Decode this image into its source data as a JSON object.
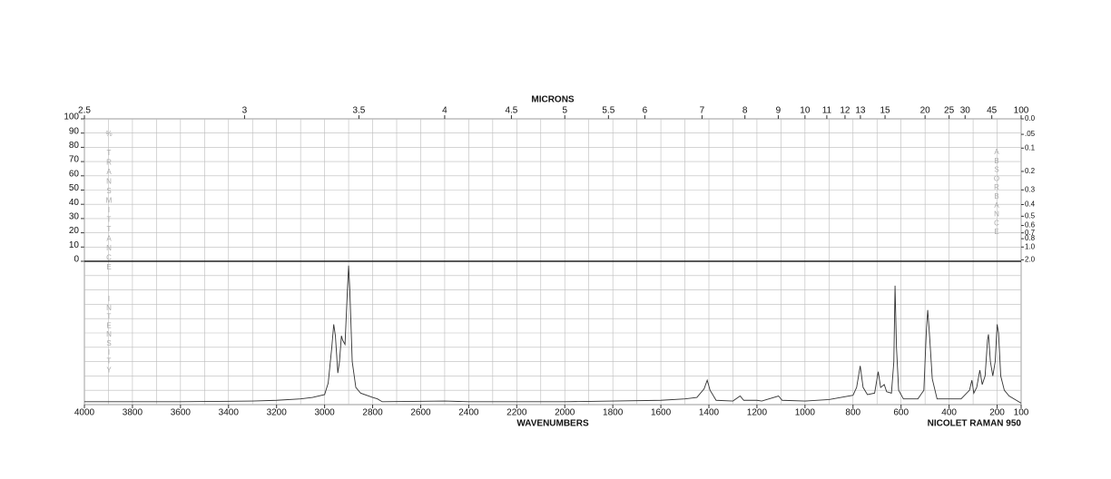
{
  "chart_data": {
    "type": "line",
    "x2_label": "MICRONS",
    "x_label": "WAVENUMBERS",
    "footer": "NICOLET RAMAN 950",
    "transmittance_label": "% TRANSMITTANCE",
    "intensity_label": "INTENSITY",
    "absorbance_label": "ABSORBANCE",
    "xlim": [
      4000,
      100
    ],
    "xticks": [
      4000,
      3800,
      3600,
      3400,
      3200,
      3000,
      2800,
      2600,
      2400,
      2200,
      2000,
      1800,
      1600,
      1400,
      1200,
      1000,
      800,
      600,
      400,
      200,
      100
    ],
    "xgrid": [
      3900,
      3700,
      3500,
      3300,
      3100,
      2900,
      2700,
      2500,
      2300,
      2100,
      1900,
      1700,
      1500,
      1300,
      1100,
      900,
      700,
      500,
      300
    ],
    "x2ticks": [
      2.5,
      3,
      3.5,
      4,
      4.5,
      5,
      5.5,
      6,
      7,
      8,
      9,
      10,
      11,
      12,
      13,
      15,
      20,
      25,
      30,
      45,
      100
    ],
    "transmittance_lim": [
      0,
      100
    ],
    "transmittance_ticks": [
      0,
      10,
      20,
      30,
      40,
      50,
      60,
      70,
      80,
      90,
      100
    ],
    "absorbance_ticks": [
      {
        "value": 0,
        "label": "0.0"
      },
      {
        "value": 0.05,
        "label": ".05"
      },
      0.1,
      0.2,
      0.3,
      0.4,
      0.5,
      0.6,
      0.7,
      0.8,
      {
        "value": 1,
        "label": "1.0"
      },
      {
        "value": 2,
        "label": "2.0"
      }
    ],
    "ylim": [
      0,
      100
    ],
    "x": [
      4000,
      3600,
      3300,
      3200,
      3100,
      3050,
      3000,
      2985,
      2970,
      2962,
      2955,
      2945,
      2938,
      2930,
      2925,
      2915,
      2905,
      2900,
      2895,
      2885,
      2870,
      2850,
      2800,
      2780,
      2760,
      2500,
      2400,
      2000,
      1800,
      1600,
      1500,
      1450,
      1420,
      1407,
      1395,
      1370,
      1300,
      1270,
      1255,
      1200,
      1180,
      1110,
      1095,
      1000,
      900,
      850,
      800,
      785,
      770,
      758,
      740,
      710,
      695,
      685,
      670,
      660,
      640,
      630,
      625,
      619,
      610,
      590,
      530,
      505,
      495,
      489,
      482,
      470,
      450,
      350,
      315,
      305,
      297,
      285,
      272,
      262,
      250,
      240,
      236,
      228,
      218,
      208,
      200,
      194,
      185,
      170,
      150,
      100
    ],
    "series": [
      {
        "color": "#333333",
        "values": [
          2,
          2,
          2.5,
          3,
          4,
          5,
          7,
          15,
          40,
          56,
          48,
          22,
          30,
          48,
          45,
          42,
          80,
          97,
          80,
          30,
          12,
          8,
          5,
          4,
          2,
          2.5,
          2,
          2,
          2.5,
          3,
          4,
          5,
          11,
          17,
          10,
          3,
          2.5,
          6,
          3,
          3,
          2.5,
          6,
          3,
          2.5,
          3.5,
          5,
          6.5,
          12,
          27,
          12,
          7,
          8,
          23,
          12,
          14,
          9,
          8,
          30,
          83,
          40,
          10,
          4,
          4,
          10,
          50,
          66,
          50,
          18,
          4,
          4,
          10,
          17,
          8,
          12,
          24,
          14,
          20,
          45,
          49,
          30,
          20,
          30,
          56,
          50,
          20,
          10,
          6,
          1
        ]
      }
    ]
  }
}
